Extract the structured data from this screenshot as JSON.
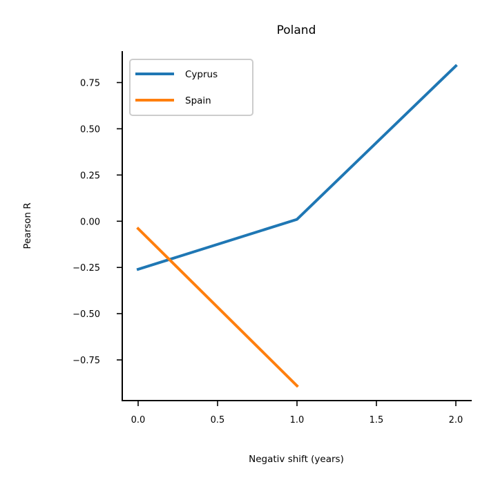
{
  "chart_data": {
    "type": "line",
    "title": "Poland",
    "xlabel": "Negativ shift (years)",
    "ylabel": "Pearson R",
    "xlim": [
      -0.1,
      2.1
    ],
    "ylim": [
      -0.97,
      0.92
    ],
    "xticks": [
      0.0,
      0.5,
      1.0,
      1.5,
      2.0
    ],
    "xtick_labels": [
      "0.0",
      "0.5",
      "1.0",
      "1.5",
      "2.0"
    ],
    "yticks": [
      -0.75,
      -0.5,
      -0.25,
      0.0,
      0.25,
      0.5,
      0.75
    ],
    "ytick_labels": [
      "−0.75",
      "−0.50",
      "−0.25",
      "0.00",
      "0.25",
      "0.50",
      "0.75"
    ],
    "grid": false,
    "legend_position": "top-left",
    "series": [
      {
        "name": "Cyprus",
        "color": "#1f77b4",
        "x": [
          0,
          1,
          2
        ],
        "y": [
          -0.26,
          0.01,
          0.84
        ]
      },
      {
        "name": "Spain",
        "color": "#ff7f0e",
        "x": [
          0,
          1
        ],
        "y": [
          -0.04,
          -0.89
        ]
      }
    ]
  }
}
